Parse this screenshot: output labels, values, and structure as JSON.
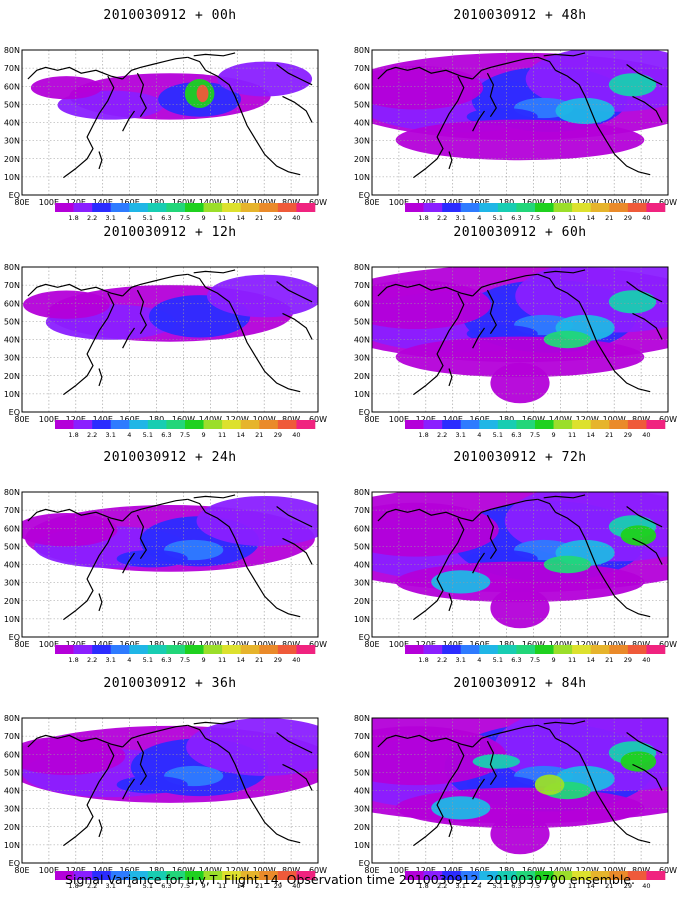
{
  "lat_labels": [
    "80N",
    "70N",
    "60N",
    "50N",
    "40N",
    "30N",
    "20N",
    "10N",
    "EQ"
  ],
  "lon_labels": [
    "80E",
    "100E",
    "120E",
    "140E",
    "160E",
    "180",
    "160W",
    "140W",
    "120W",
    "100W",
    "80W",
    "60W"
  ],
  "colorbar": {
    "labels": [
      "1.8",
      "2.2",
      "3.1",
      "4",
      "5.1",
      "6.3",
      "7.5",
      "9",
      "11",
      "14",
      "21",
      "29",
      "40"
    ],
    "colors": [
      "#b400d9",
      "#8a1fff",
      "#2b2cff",
      "#2e7bff",
      "#20b6e6",
      "#18cdb2",
      "#22d67a",
      "#1fd11f",
      "#9bde2a",
      "#dde12e",
      "#e6b42c",
      "#ea8a2a",
      "#ef5a3a",
      "#f0237f"
    ]
  },
  "panels": [
    {
      "title": "2010030912 + 00h",
      "level": 0
    },
    {
      "title": "2010030912 + 48h",
      "level": 4
    },
    {
      "title": "2010030912 + 12h",
      "level": 1
    },
    {
      "title": "2010030912 + 60h",
      "level": 5
    },
    {
      "title": "2010030912 + 24h",
      "level": 2
    },
    {
      "title": "2010030912 + 72h",
      "level": 6
    },
    {
      "title": "2010030912 + 36h",
      "level": 3
    },
    {
      "title": "2010030912 + 84h",
      "level": 7
    }
  ],
  "caption": "Signal Variance for u,v,T. Flight 14. Observation time 2010030912. 2010030700 ensemble."
}
